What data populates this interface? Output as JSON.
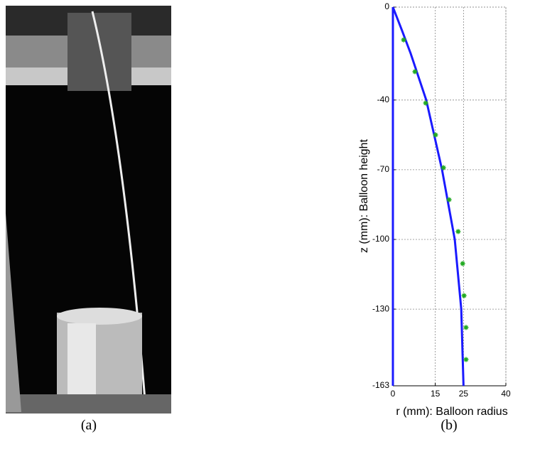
{
  "figure": {
    "captions": [
      "(a)",
      "(b)"
    ]
  },
  "chart_data": {
    "type": "line",
    "xlabel": "r (mm): Balloon radius",
    "ylabel": "z (mm): Balloon height",
    "xlim": [
      0,
      40
    ],
    "xticks": [
      0,
      15,
      25,
      40
    ],
    "ylim": [
      -163,
      0
    ],
    "yticks": [
      0,
      -40,
      -70,
      -100,
      -130,
      -163
    ],
    "grid": true,
    "series": [
      {
        "color": "#1a1aff",
        "x": [
          0,
          0
        ],
        "values": [
          0,
          -163
        ]
      },
      {
        "color": "#1a1aff",
        "x": [
          0,
          3.2,
          6.3,
          11.8,
          17.4,
          21.9,
          24.2,
          25
        ],
        "values": [
          0,
          -10,
          -20,
          -40,
          -70,
          -100,
          -130,
          -163
        ]
      },
      {
        "type": "scatter",
        "color": "#22aa22",
        "x": [
          3.8,
          7.8,
          11.6,
          15.1,
          17.9,
          19.9,
          23.1,
          24.7,
          25.2,
          25.9,
          25.9
        ],
        "values": [
          -14.1,
          -27.8,
          -41.3,
          -55,
          -69.1,
          -82.9,
          -96.6,
          -110.4,
          -124.2,
          -137.9,
          -151.7
        ]
      }
    ]
  }
}
